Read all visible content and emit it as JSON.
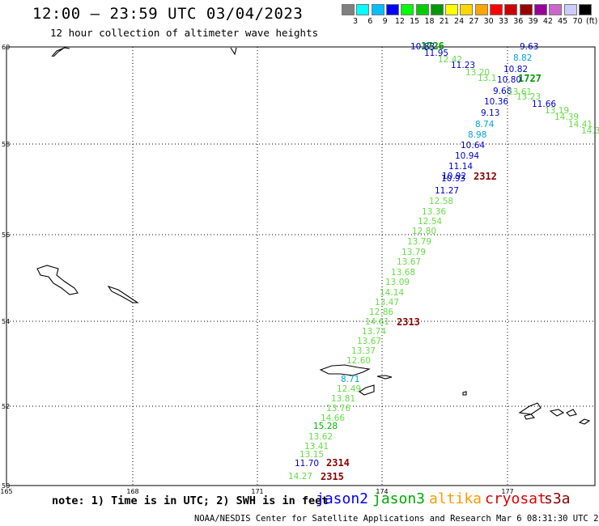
{
  "header": {
    "title": "12:00 – 23:59 UTC 03/04/2023",
    "subtitle": "12 hour collection of altimeter wave heights"
  },
  "legend": {
    "unit": "(ft)",
    "bins": [
      {
        "label": "3",
        "color": "#808080"
      },
      {
        "label": "6",
        "color": "#00ffff"
      },
      {
        "label": "9",
        "color": "#00bfff"
      },
      {
        "label": "12",
        "color": "#0000ff"
      },
      {
        "label": "15",
        "color": "#00ff00"
      },
      {
        "label": "18",
        "color": "#00cc00"
      },
      {
        "label": "21",
        "color": "#009900"
      },
      {
        "label": "24",
        "color": "#ffff00"
      },
      {
        "label": "27",
        "color": "#ffd700"
      },
      {
        "label": "30",
        "color": "#ffa500"
      },
      {
        "label": "33",
        "color": "#ff0000"
      },
      {
        "label": "36",
        "color": "#cc0000"
      },
      {
        "label": "39",
        "color": "#990000"
      },
      {
        "label": "42",
        "color": "#990099"
      },
      {
        "label": "45",
        "color": "#cc66cc"
      },
      {
        "label": "70",
        "color": "#ccccff"
      },
      {
        "label": "",
        "color": "#000000"
      }
    ]
  },
  "axes": {
    "lat_labels": [
      "60",
      "58",
      "56",
      "54",
      "52",
      "50"
    ],
    "lon_labels": [
      "165",
      "168",
      "171",
      "174",
      "177"
    ]
  },
  "wave_heights": {
    "pass_labels": [
      {
        "text": "1726",
        "color": "#009900"
      },
      {
        "text": "1727",
        "color": "#009900"
      },
      {
        "text": "2312",
        "color": "#8b0000"
      },
      {
        "text": "2313",
        "color": "#8b0000"
      },
      {
        "text": "2314",
        "color": "#8b0000"
      },
      {
        "text": "2315",
        "color": "#8b0000"
      }
    ],
    "readings": [
      {
        "text": "10.83",
        "color": "#0000cc"
      },
      {
        "text": "11.95",
        "color": "#0000cc"
      },
      {
        "text": "12.42",
        "color": "#66dd44"
      },
      {
        "text": "11.23",
        "color": "#0000cc"
      },
      {
        "text": "13.20",
        "color": "#66dd44"
      },
      {
        "text": "13.1",
        "color": "#66dd44"
      },
      {
        "text": "9.63",
        "color": "#0000cc"
      },
      {
        "text": "8.82",
        "color": "#00a0e0"
      },
      {
        "text": "10.82",
        "color": "#0000cc"
      },
      {
        "text": "10.80",
        "color": "#0000cc"
      },
      {
        "text": "9.68",
        "color": "#0000cc"
      },
      {
        "text": "13.61",
        "color": "#66dd44"
      },
      {
        "text": "13.23",
        "color": "#66dd44"
      },
      {
        "text": "10.36",
        "color": "#0000cc"
      },
      {
        "text": "11.66",
        "color": "#0000cc"
      },
      {
        "text": "13.19",
        "color": "#66dd44"
      },
      {
        "text": "14.39",
        "color": "#66dd44"
      },
      {
        "text": "14.41",
        "color": "#66dd44"
      },
      {
        "text": "14.3",
        "color": "#66dd44"
      },
      {
        "text": "9.13",
        "color": "#0000cc"
      },
      {
        "text": "8.74",
        "color": "#00a0e0"
      },
      {
        "text": "8.98",
        "color": "#00a0e0"
      },
      {
        "text": "10.64",
        "color": "#0000cc"
      },
      {
        "text": "10.94",
        "color": "#0000cc"
      },
      {
        "text": "11.14",
        "color": "#0000cc"
      },
      {
        "text": "10.92",
        "color": "#0000cc"
      },
      {
        "text": "10.93",
        "color": "#0000cc"
      },
      {
        "text": "11.27",
        "color": "#0000cc"
      },
      {
        "text": "12.58",
        "color": "#66dd44"
      },
      {
        "text": "13.36",
        "color": "#66dd44"
      },
      {
        "text": "12.54",
        "color": "#66dd44"
      },
      {
        "text": "12.80",
        "color": "#66dd44"
      },
      {
        "text": "13.79",
        "color": "#66dd44"
      },
      {
        "text": "13.79",
        "color": "#66dd44"
      },
      {
        "text": "13.67",
        "color": "#66dd44"
      },
      {
        "text": "13.68",
        "color": "#66dd44"
      },
      {
        "text": "13.09",
        "color": "#66dd44"
      },
      {
        "text": "14.14",
        "color": "#66dd44"
      },
      {
        "text": "13.47",
        "color": "#66dd44"
      },
      {
        "text": "12.86",
        "color": "#66dd44"
      },
      {
        "text": "14.61",
        "color": "#66dd44"
      },
      {
        "text": "13.74",
        "color": "#66dd44"
      },
      {
        "text": "13.67",
        "color": "#66dd44"
      },
      {
        "text": "13.37",
        "color": "#66dd44"
      },
      {
        "text": "12.60",
        "color": "#66dd44"
      },
      {
        "text": "8.71",
        "color": "#00a0e0"
      },
      {
        "text": "12.49",
        "color": "#66dd44"
      },
      {
        "text": "13.81",
        "color": "#66dd44"
      },
      {
        "text": "13.76",
        "color": "#66dd44"
      },
      {
        "text": "14.66",
        "color": "#66dd44"
      },
      {
        "text": "15.28",
        "color": "#00bb00"
      },
      {
        "text": "13.62",
        "color": "#66dd44"
      },
      {
        "text": "13.41",
        "color": "#66dd44"
      },
      {
        "text": "13.15",
        "color": "#66dd44"
      },
      {
        "text": "11.70",
        "color": "#0000cc"
      },
      {
        "text": "14.27",
        "color": "#66dd44"
      }
    ]
  },
  "footer": {
    "note": "note: 1) Time is in UTC; 2) SWH is in feet",
    "missions": [
      {
        "label": "jason2",
        "color": "#0000ff"
      },
      {
        "label": "jason3",
        "color": "#00aa00"
      },
      {
        "label": "altika",
        "color": "#ff9900"
      },
      {
        "label": "cryosat",
        "color": "#dd0000"
      },
      {
        "label": "s3a",
        "color": "#8b0000"
      }
    ],
    "credit": "NOAA/NESDIS Center for Satellite Applications and Research   Mar  6 08:31:30 UTC 2023"
  }
}
